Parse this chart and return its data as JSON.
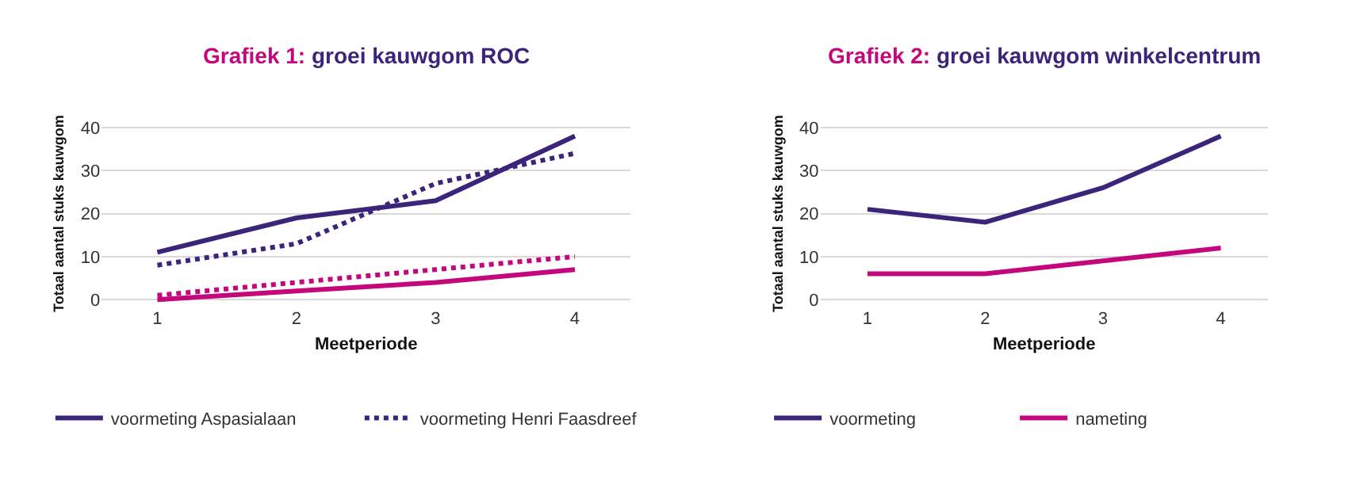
{
  "chart_data": [
    {
      "type": "line",
      "title": "Grafiek 1: groei kauwgom ROC",
      "xlabel": "Meetperiode",
      "ylabel": "Totaal aantal stuks kauwgom",
      "categories": [
        "1",
        "2",
        "3",
        "4"
      ],
      "ylim": [
        0,
        40
      ],
      "yticks": [
        0,
        10,
        20,
        30,
        40
      ],
      "grid": "y",
      "legend": "bottom",
      "series": [
        {
          "name": "voormeting Aspasialaan",
          "color": "#3b2479",
          "values": [
            11,
            19,
            23,
            38
          ],
          "line_style": "solid"
        },
        {
          "name": "voormeting Henri Faasdreef",
          "color": "#3b2479",
          "values": [
            8,
            13,
            27,
            34
          ],
          "line_style": "dotted"
        },
        {
          "color": "#c4087c",
          "values": [
            0,
            2,
            4,
            7
          ],
          "line_style": "solid"
        },
        {
          "color": "#c4087c",
          "values": [
            1,
            4,
            7,
            10
          ],
          "line_style": "dotted"
        }
      ]
    },
    {
      "type": "line",
      "title": "Grafiek 2: groei kauwgom winkelcentrum",
      "xlabel": "Meetperiode",
      "ylabel": "Totaal aantal stuks kauwgom",
      "categories": [
        "1",
        "2",
        "3",
        "4"
      ],
      "ylim": [
        0,
        40
      ],
      "yticks": [
        0,
        10,
        20,
        30,
        40
      ],
      "grid": "y",
      "legend": "bottom",
      "series": [
        {
          "name": "voormeting",
          "color": "#3b2479",
          "values": [
            21,
            18,
            26,
            38
          ],
          "line_style": "solid"
        },
        {
          "name": "nameting",
          "color": "#c4087c",
          "values": [
            6,
            6,
            9,
            12
          ],
          "line_style": "solid"
        }
      ]
    }
  ]
}
